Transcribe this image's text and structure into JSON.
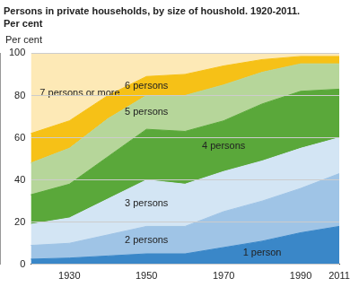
{
  "chart_data": {
    "type": "area",
    "title": "Persons in private households, by size of houshold. 1920-2011.",
    "subtitle": "Per cent",
    "y_label": "Per cent",
    "categories": [
      null,
      "1930",
      null,
      "1950",
      null,
      "1970",
      null,
      "1990",
      "2011"
    ],
    "stacked": true,
    "grid": true,
    "ylim": [
      0,
      100
    ],
    "yticks": [
      0,
      20,
      40,
      60,
      80,
      100
    ],
    "series": [
      {
        "name": "1 person",
        "color": "#3a87c8",
        "values": [
          2.5,
          3,
          4,
          5,
          5,
          8,
          11,
          15,
          18
        ]
      },
      {
        "name": "2 persons",
        "color": "#9fc4e6",
        "values": [
          6.5,
          7,
          10,
          13,
          13,
          17,
          19,
          21,
          25
        ]
      },
      {
        "name": "3 persons",
        "color": "#d3e5f4",
        "values": [
          10,
          12,
          17,
          22,
          20,
          19,
          19,
          19,
          17
        ]
      },
      {
        "name": "4 persons",
        "color": "#5aa83a",
        "values": [
          14,
          16,
          20,
          24,
          25,
          24,
          27,
          27,
          23
        ]
      },
      {
        "name": "5 persons",
        "color": "#b6d69a",
        "values": [
          15,
          17,
          18,
          16,
          17,
          17,
          15,
          13,
          12
        ]
      },
      {
        "name": "6 persons",
        "color": "#f6c117",
        "values": [
          14,
          13,
          11,
          9,
          10,
          9,
          6,
          3.5,
          3.5
        ]
      },
      {
        "name": "7 persons or more",
        "color": "#fde9b6",
        "values": [
          38,
          32,
          20,
          11,
          10,
          6,
          3,
          1.5,
          1.5
        ]
      }
    ]
  }
}
